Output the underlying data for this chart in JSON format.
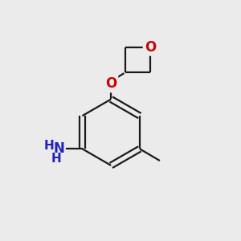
{
  "background_color": "#ebebeb",
  "bond_color": "#1a1a1a",
  "bond_width": 1.6,
  "atom_colors": {
    "O": "#cc0000",
    "N": "#2222bb",
    "C": "#1a1a1a"
  },
  "font_size_atom": 12,
  "fig_width": 3.0,
  "fig_height": 3.0,
  "dpi": 100
}
